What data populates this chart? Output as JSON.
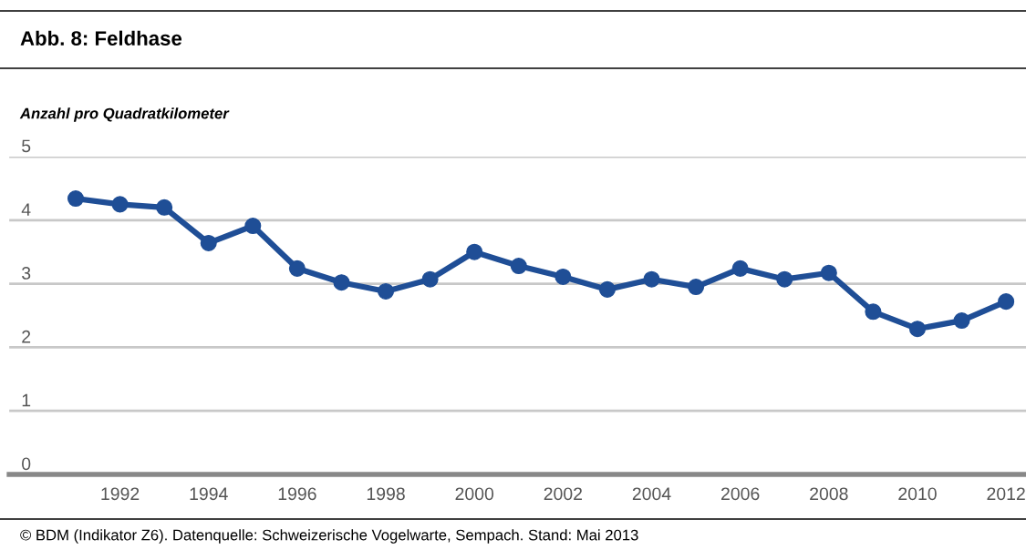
{
  "chart_data": {
    "type": "line",
    "title": "Abb. 8: Feldhase",
    "ylabel": "Anzahl pro Quadratkilometer",
    "annotations": [
      "© BDM (Indikator Z6). Datenquelle: Schweizerische Vogelwarte, Sempach. Stand: Mai 2013"
    ],
    "x": [
      1991,
      1992,
      1993,
      1994,
      1995,
      1996,
      1997,
      1998,
      1999,
      2000,
      2001,
      2002,
      2003,
      2004,
      2005,
      2006,
      2007,
      2008,
      2009,
      2010,
      2011,
      2012
    ],
    "series": [
      {
        "color": "#1f4e96",
        "values": [
          4.34,
          4.25,
          4.2,
          3.64,
          3.91,
          3.24,
          3.02,
          2.88,
          3.07,
          3.5,
          3.28,
          3.11,
          2.91,
          3.07,
          2.95,
          3.24,
          3.07,
          3.17,
          2.56,
          2.29,
          2.42,
          2.72
        ]
      }
    ],
    "xlim": [
      1989.5,
      2012.45
    ],
    "xticks": [
      1992,
      1994,
      1996,
      1998,
      2000,
      2002,
      2004,
      2006,
      2008,
      2010,
      2012
    ],
    "ylim": [
      0,
      5
    ],
    "yticks": [
      0,
      1,
      2,
      3,
      4,
      5
    ],
    "grid": "y",
    "marker": "circle",
    "line_style": "solid",
    "legend": false
  }
}
